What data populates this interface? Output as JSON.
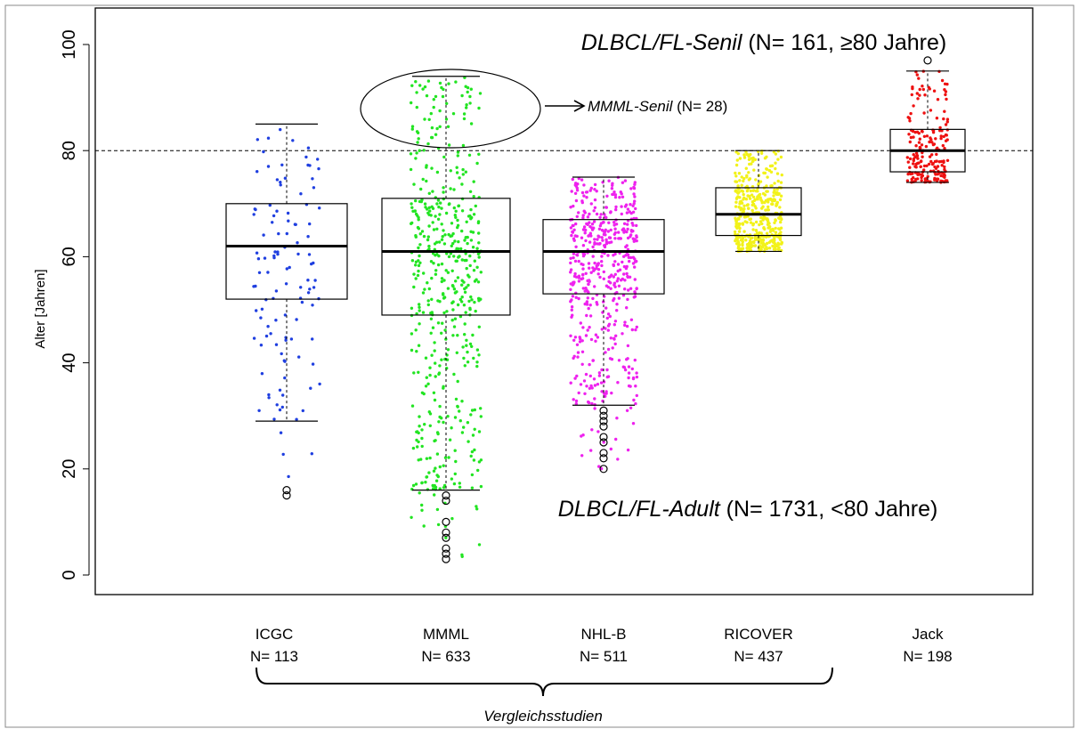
{
  "chart_data": {
    "type": "box",
    "ylabel": "Alter [Jahren]",
    "ylim": [
      0,
      100
    ],
    "yticks": [
      "0",
      "20",
      "40",
      "60",
      "80",
      "100"
    ],
    "reference_line": 80,
    "categories": [
      {
        "name": "ICGC",
        "n_label": "N= 113",
        "n": 113,
        "color": "#1f3fe0",
        "min": 29,
        "q1": 52,
        "median": 62,
        "q3": 70,
        "max": 85,
        "outliers": [
          15,
          16
        ],
        "dots_min": 15,
        "dots_max": 85
      },
      {
        "name": "MMML",
        "n_label": "N= 633",
        "n": 633,
        "color": "#22e422",
        "min": 16,
        "q1": 49,
        "median": 61,
        "q3": 71,
        "max": 94,
        "outliers": [
          3,
          4,
          5,
          7,
          8,
          10,
          14,
          15
        ],
        "dots_min": 3,
        "dots_max": 94
      },
      {
        "name": "NHL-B",
        "n_label": "N= 511",
        "n": 511,
        "color": "#ee22ee",
        "min": 32,
        "q1": 53,
        "median": 61,
        "q3": 67,
        "max": 75,
        "outliers": [
          20,
          22,
          23,
          25,
          26,
          28,
          29,
          30,
          31
        ],
        "dots_min": 20,
        "dots_max": 75
      },
      {
        "name": "RICOVER",
        "n_label": "N= 437",
        "n": 437,
        "color": "#f2f21a",
        "min": 61,
        "q1": 64,
        "median": 68,
        "q3": 73,
        "max": 80,
        "outliers": [],
        "dots_min": 61,
        "dots_max": 80
      },
      {
        "name": "Jack",
        "n_label": "N= 198",
        "n": 198,
        "color": "#ee1111",
        "min": 74,
        "q1": 76,
        "median": 80,
        "q3": 84,
        "max": 95,
        "outliers": [
          97
        ],
        "dots_min": 74,
        "dots_max": 97
      }
    ],
    "annotations": {
      "senil_italic": "DLBCL/FL-Senil",
      "senil_rest": " (N= 161, ≥80 Jahre)",
      "adult_italic": "DLBCL/FL-Adult",
      "adult_rest": " (N= 1731, <80 Jahre)",
      "mmml_senil_italic": "MMML-Senil",
      "mmml_senil_rest": " (N= 28)",
      "group_label": "Vergleichsstudien"
    }
  }
}
